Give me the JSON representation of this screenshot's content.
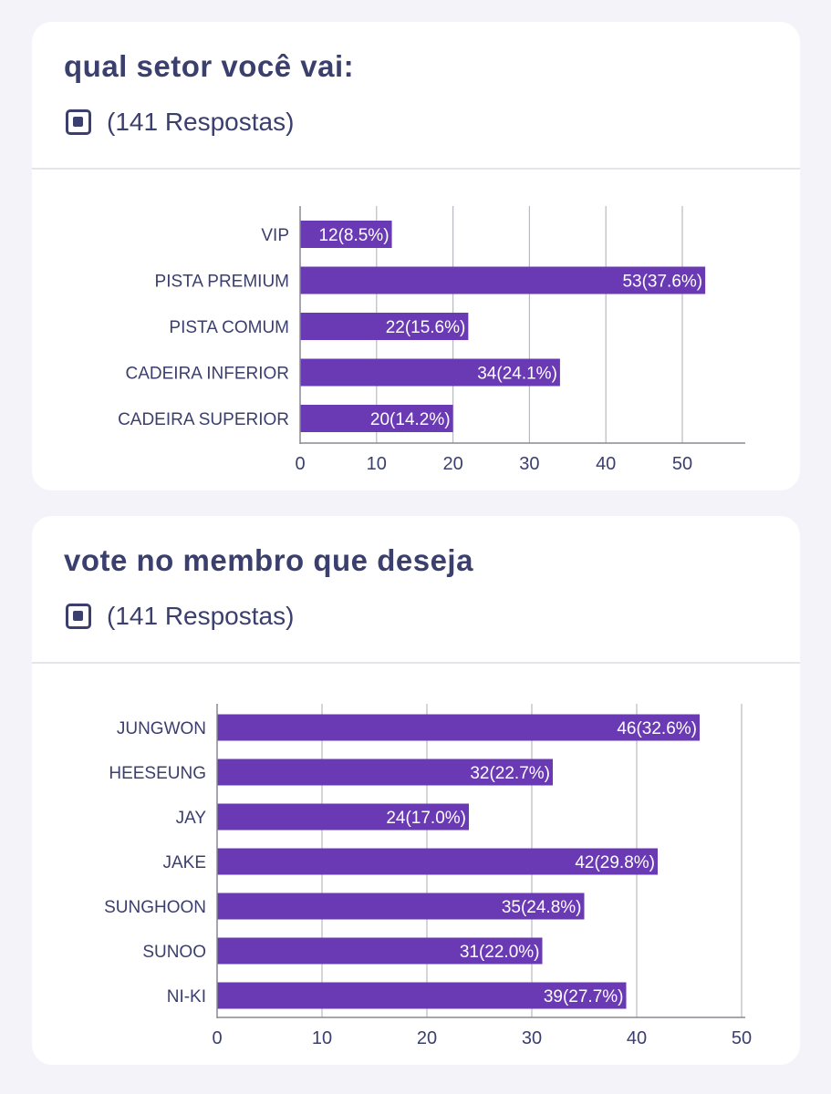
{
  "colors": {
    "background": "#f5f3fa",
    "card": "#ffffff",
    "title_text": "#3a3f6e",
    "bar": "#6a3ab5",
    "bar_label": "#ffffff",
    "grid": "#b9b9c0",
    "axis": "#888890",
    "category_text": "#3a3f6e"
  },
  "cards": [
    {
      "title": "qual setor você vai:",
      "icon": "checkbox-icon",
      "responses": "(141 Respostas)"
    },
    {
      "title": "vote no membro que deseja",
      "icon": "checkbox-icon",
      "responses": "(141 Respostas)"
    }
  ],
  "chart_data": [
    {
      "type": "bar",
      "orientation": "horizontal",
      "categories": [
        "VIP",
        "PISTA PREMIUM",
        "PISTA COMUM",
        "CADEIRA INFERIOR",
        "CADEIRA SUPERIOR"
      ],
      "values": [
        12,
        53,
        22,
        34,
        20
      ],
      "percent": [
        "8.5%",
        "37.6%",
        "15.6%",
        "24.1%",
        "14.2%"
      ],
      "bar_labels": [
        "12(8.5%)",
        "53(37.6%)",
        "22(15.6%)",
        "34(24.1%)",
        "20(14.2%)"
      ],
      "xticks": [
        0,
        10,
        20,
        30,
        40,
        50
      ],
      "xlim": [
        0,
        58
      ],
      "grid": true
    },
    {
      "type": "bar",
      "orientation": "horizontal",
      "categories": [
        "JUNGWON",
        "HEESEUNG",
        "JAY",
        "JAKE",
        "SUNGHOON",
        "SUNOO",
        "NI-KI"
      ],
      "values": [
        46,
        32,
        24,
        42,
        35,
        31,
        39
      ],
      "percent": [
        "32.6%",
        "22.7%",
        "17.0%",
        "29.8%",
        "24.8%",
        "22.0%",
        "27.7%"
      ],
      "bar_labels": [
        "46(32.6%)",
        "32(22.7%)",
        "24(17.0%)",
        "42(29.8%)",
        "35(24.8%)",
        "31(22.0%)",
        "39(27.7%)"
      ],
      "xticks": [
        0,
        10,
        20,
        30,
        40,
        50
      ],
      "xlim": [
        0,
        50.5
      ],
      "grid": true
    }
  ]
}
